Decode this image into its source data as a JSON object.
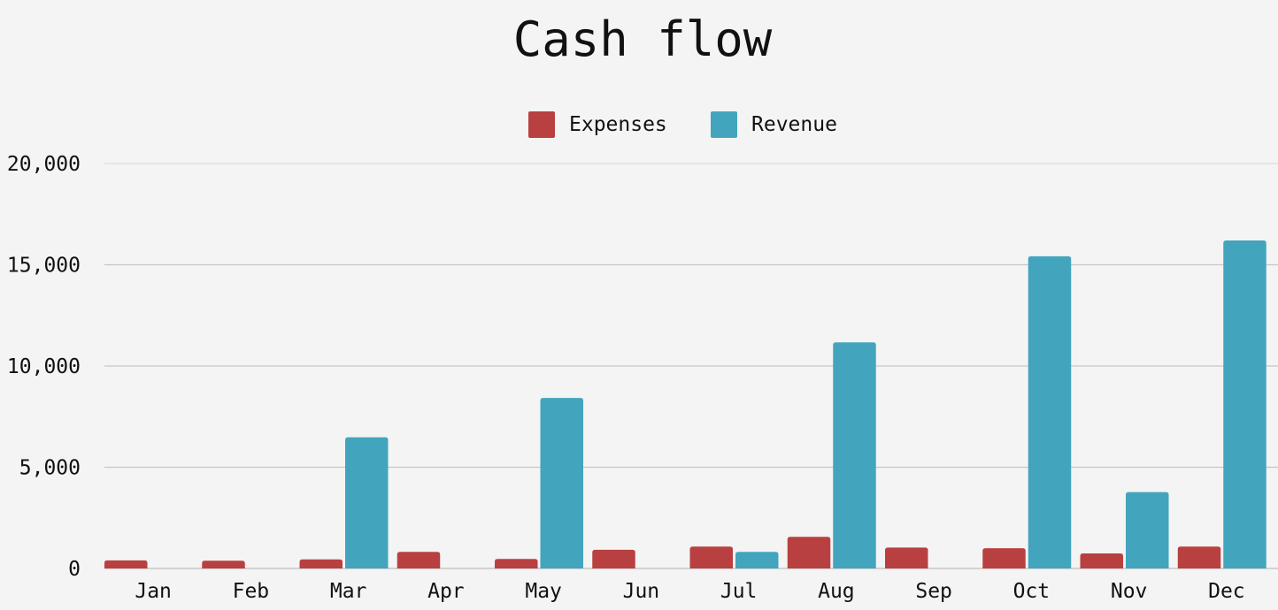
{
  "chart_data": {
    "type": "bar",
    "title": "Cash flow",
    "categories": [
      "Jan",
      "Feb",
      "Mar",
      "Apr",
      "May",
      "Jun",
      "Jul",
      "Aug",
      "Sep",
      "Oct",
      "Nov",
      "Dec"
    ],
    "series": [
      {
        "name": "Expenses",
        "color": "#b94040",
        "values": [
          400,
          380,
          450,
          820,
          470,
          920,
          1080,
          1560,
          1030,
          1000,
          740,
          1080
        ]
      },
      {
        "name": "Revenue",
        "color": "#42a5bd",
        "values": [
          0,
          0,
          6480,
          0,
          8420,
          0,
          820,
          11170,
          0,
          15420,
          3770,
          16200
        ]
      }
    ],
    "ylim": [
      0,
      20000
    ],
    "yticks": [
      0,
      5000,
      10000,
      15000,
      20000
    ],
    "ytick_labels": [
      "0",
      "5,000",
      "10,000",
      "15,000",
      "20,000"
    ],
    "grid": true,
    "legend_position": "top-center",
    "xlabel": "",
    "ylabel": ""
  }
}
